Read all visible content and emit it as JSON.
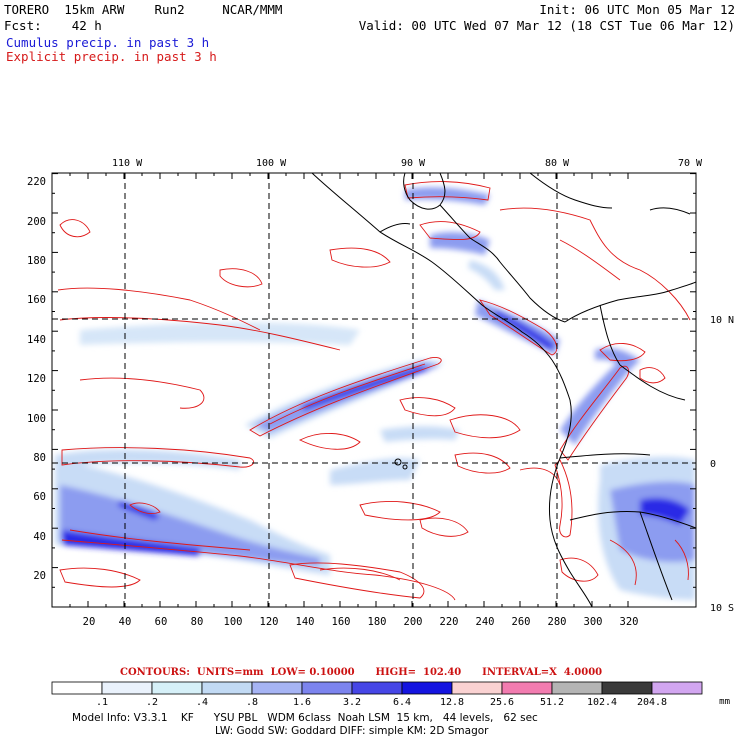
{
  "header": {
    "model_line": "TORERO  15km ARW    Run2     NCAR/MMM",
    "init_line": "Init: 06 UTC Mon 05 Mar 12",
    "fcst_line": "Fcst:    42 h",
    "valid_line": "Valid: 00 UTC Wed 07 Mar 12 (18 CST Tue 06 Mar 12)",
    "legend_cumulus": "Cumulus precip. in past 3 h",
    "legend_explicit": "Explicit precip. in past 3 h"
  },
  "map": {
    "top_lon_labels": [
      "110 W",
      "100 W",
      "90 W",
      "80 W",
      "70 W"
    ],
    "right_lat_labels": [
      "10 N",
      "0",
      "10 S"
    ],
    "y_ticks": [
      "220",
      "200",
      "180",
      "160",
      "140",
      "120",
      "100",
      "80",
      "60",
      "40",
      "20"
    ],
    "x_ticks": [
      "20",
      "40",
      "60",
      "80",
      "100",
      "120",
      "140",
      "160",
      "180",
      "200",
      "220",
      "240",
      "260",
      "280",
      "300",
      "320"
    ],
    "colors": {
      "coast": "#000000",
      "grid": "#000000",
      "explicit_contour": "#e01818",
      "cumulus_light": "#c8dcf6",
      "cumulus_mid": "#8c9cf0",
      "cumulus_heavy": "#2a2ae6"
    }
  },
  "contour_info": {
    "label": "CONTOURS:  UNITS=mm  LOW= 0.10000      HIGH=  102.40      INTERVAL=X  4.0000"
  },
  "colorbar": {
    "labels": [
      ".1",
      ".2",
      ".4",
      ".8",
      "1.6",
      "3.2",
      "6.4",
      "12.8",
      "25.6",
      "51.2",
      "102.4",
      "204.8"
    ],
    "unit": "mm",
    "colors": [
      "#ffffff",
      "#eaf2fc",
      "#d6f0f8",
      "#c2daf4",
      "#a6b4f4",
      "#7c84ee",
      "#4646e6",
      "#1414e0",
      "#fad2d2",
      "#f27cb0",
      "#b4b4b4",
      "#3a3a3a",
      "#d2a6f0"
    ]
  },
  "footer": {
    "line1": "Model Info: V3.3.1    KF      YSU PBL   WDM 6class  Noah LSM  15 km,   44 levels,   62 sec",
    "line2": "LW: Godd SW: Goddard DIFF: simple KM: 2D Smagor"
  }
}
